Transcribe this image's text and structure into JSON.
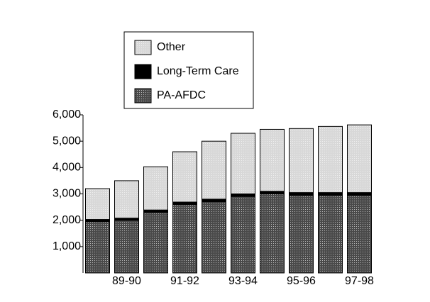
{
  "chart_data": {
    "type": "stacked-bar",
    "categories": [
      null,
      "89-90",
      null,
      "91-92",
      null,
      "93-94",
      null,
      "95-96",
      null,
      "97-98"
    ],
    "series": [
      {
        "name": "PA-AFDC",
        "color": "#4a4a4a",
        "values": [
          1950,
          2000,
          2300,
          2600,
          2700,
          2900,
          3000,
          2950,
          2950,
          2950
        ]
      },
      {
        "name": "Long-Term Care",
        "color": "#000000",
        "values": [
          80,
          80,
          90,
          90,
          100,
          100,
          100,
          100,
          100,
          100
        ]
      },
      {
        "name": "Other",
        "color": "#d8d8d8",
        "values": [
          1170,
          1420,
          1640,
          1910,
          2200,
          2300,
          2350,
          2430,
          2510,
          2570
        ]
      }
    ],
    "ylim": [
      0,
      6000
    ],
    "yticks": [
      {
        "value": 1000,
        "label": "1,000"
      },
      {
        "value": 2000,
        "label": "2,000"
      },
      {
        "value": 3000,
        "label": "3,000"
      },
      {
        "value": 4000,
        "label": "4,000"
      },
      {
        "value": 5000,
        "label": "5,000"
      },
      {
        "value": 6000,
        "label": "6,000"
      }
    ]
  }
}
